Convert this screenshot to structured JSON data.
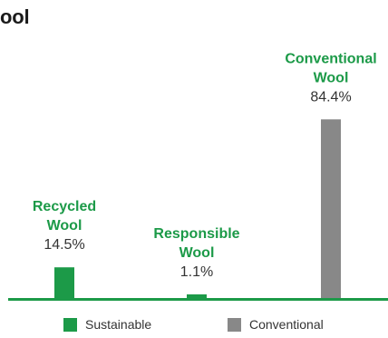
{
  "chart_data": {
    "type": "bar",
    "title": "ool",
    "categories": [
      "Recycled Wool",
      "Responsible Wool",
      "Conventional Wool"
    ],
    "category_lines": [
      [
        "Recycled",
        "Wool"
      ],
      [
        "Responsible",
        "Wool"
      ],
      [
        "Conventional",
        "Wool"
      ]
    ],
    "values": [
      14.5,
      1.1,
      84.4
    ],
    "value_labels": [
      "14.5%",
      "1.1%",
      "84.4%"
    ],
    "series_group": [
      "Sustainable",
      "Sustainable",
      "Conventional"
    ],
    "ylim": [
      0,
      100
    ],
    "grid": false,
    "legend_position": "bottom",
    "legend": [
      {
        "label": "Sustainable",
        "color": "#1c9a48"
      },
      {
        "label": "Conventional",
        "color": "#888888"
      }
    ]
  },
  "colors": {
    "sustainable": "#1c9a48",
    "conventional": "#888888",
    "baseline": "#1c9a48",
    "value_text": "#333333"
  }
}
